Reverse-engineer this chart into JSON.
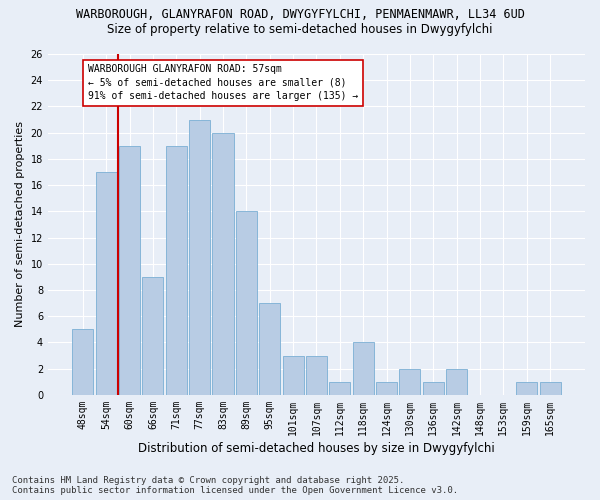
{
  "title_line1": "WARBOROUGH, GLANYRAFON ROAD, DWYGYFYLCHI, PENMAENMAWR, LL34 6UD",
  "title_line2": "Size of property relative to semi-detached houses in Dwygyfylchi",
  "xlabel": "Distribution of semi-detached houses by size in Dwygyfylchi",
  "ylabel": "Number of semi-detached properties",
  "categories": [
    "48sqm",
    "54sqm",
    "60sqm",
    "66sqm",
    "71sqm",
    "77sqm",
    "83sqm",
    "89sqm",
    "95sqm",
    "101sqm",
    "107sqm",
    "112sqm",
    "118sqm",
    "124sqm",
    "130sqm",
    "136sqm",
    "142sqm",
    "148sqm",
    "153sqm",
    "159sqm",
    "165sqm"
  ],
  "values": [
    5,
    17,
    19,
    9,
    19,
    21,
    20,
    14,
    7,
    3,
    3,
    1,
    4,
    1,
    2,
    1,
    2,
    0,
    0,
    1,
    1
  ],
  "bar_color": "#b8cce4",
  "bar_edge_color": "#7bafd4",
  "vline_color": "#cc0000",
  "annotation_text": "WARBOROUGH GLANYRAFON ROAD: 57sqm\n← 5% of semi-detached houses are smaller (8)\n91% of semi-detached houses are larger (135) →",
  "annotation_box_color": "#ffffff",
  "annotation_border_color": "#cc0000",
  "ylim": [
    0,
    26
  ],
  "yticks": [
    0,
    2,
    4,
    6,
    8,
    10,
    12,
    14,
    16,
    18,
    20,
    22,
    24,
    26
  ],
  "background_color": "#e8eef7",
  "plot_background_color": "#e8eef7",
  "footer_line1": "Contains HM Land Registry data © Crown copyright and database right 2025.",
  "footer_line2": "Contains public sector information licensed under the Open Government Licence v3.0.",
  "title_fontsize": 8.5,
  "subtitle_fontsize": 8.5,
  "xlabel_fontsize": 8.5,
  "ylabel_fontsize": 8,
  "tick_fontsize": 7,
  "footer_fontsize": 6.5,
  "annotation_fontsize": 7
}
